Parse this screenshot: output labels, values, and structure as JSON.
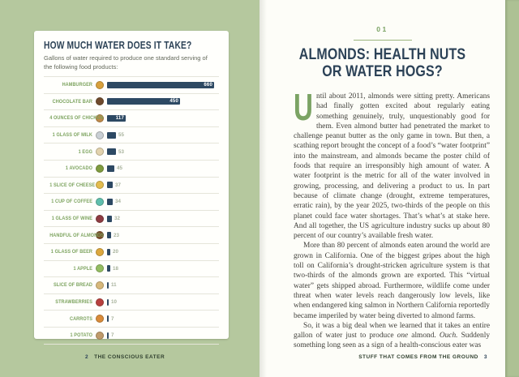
{
  "colors": {
    "background_green": "#b5c89e",
    "navy": "#2c4257",
    "accent_green": "#7ba364",
    "bar_navy": "#2d4963",
    "label_green": "#7ca35e"
  },
  "chart_data": {
    "type": "bar",
    "orientation": "horizontal",
    "title": "HOW MUCH WATER DOES IT TAKE?",
    "subtitle": "Gallons of water required to produce one standard serving of the following food products:",
    "xlabel": "",
    "ylabel": "",
    "xlim": [
      0,
      660
    ],
    "grid": false,
    "legend": false,
    "bar_color": "#2d4963",
    "categories": [
      "HAMBURGER",
      "CHOCOLATE BAR",
      "4 OUNCES OF CHICKEN",
      "1 GLASS OF MILK",
      "1 EGG",
      "1 AVOCADO",
      "1 SLICE OF CHEESE",
      "1 CUP OF COFFEE",
      "1 GLASS OF WINE",
      "HANDFUL OF ALMONDS",
      "1 GLASS OF BEER",
      "1 APPLE",
      "SLICE OF BREAD",
      "STRAWBERRIES",
      "CARROTS",
      "1 POTATO"
    ],
    "values": [
      660,
      450,
      117,
      55,
      53,
      45,
      37,
      34,
      32,
      23,
      20,
      18,
      11,
      10,
      7,
      7
    ],
    "value_label_inside_threshold": 100,
    "icons": [
      {
        "name": "hamburger-icon",
        "color": "#d8a03c"
      },
      {
        "name": "chocolate-bar-icon",
        "color": "#6f4a2d"
      },
      {
        "name": "chicken-icon",
        "color": "#c08a4a"
      },
      {
        "name": "milk-glass-icon",
        "color": "#c9cfd4"
      },
      {
        "name": "egg-icon",
        "color": "#e3d3ae"
      },
      {
        "name": "avocado-icon",
        "color": "#7f9c3f"
      },
      {
        "name": "cheese-icon",
        "color": "#e3bc4e"
      },
      {
        "name": "coffee-cup-icon",
        "color": "#5fbfae"
      },
      {
        "name": "wine-glass-icon",
        "color": "#8e3b42"
      },
      {
        "name": "almonds-icon",
        "color": "#7c4f2c"
      },
      {
        "name": "beer-glass-icon",
        "color": "#dda83e"
      },
      {
        "name": "apple-icon",
        "color": "#93bd62"
      },
      {
        "name": "bread-icon",
        "color": "#d7b87b"
      },
      {
        "name": "strawberries-icon",
        "color": "#b8403f"
      },
      {
        "name": "carrots-icon",
        "color": "#d98b3a"
      },
      {
        "name": "potato-icon",
        "color": "#bf9a6b"
      }
    ]
  },
  "left_page": {
    "footer": {
      "page_number": "2",
      "book_title": "THE CONSCIOUS EATER"
    }
  },
  "right_page": {
    "chapter_number": "01",
    "title_line1": "ALMONDS: HEALTH NUTS",
    "title_line2": "OR WATER HOGS?",
    "drop_cap": "U",
    "paragraphs": [
      [
        {
          "t": "ntil about 2011, almonds were sitting pretty. Americans had finally gotten excited about regularly eating something genuinely, truly, unquestionably good for them. Even almond butter had penetrated the market to challenge peanut butter as the only game in town. But then, a scathing report brought the concept of a food’s “water footprint” into the mainstream, and almonds became the poster child of foods that require an irresponsibly high amount of water. A water footprint is the metric for all of the water involved in growing, processing, and delivering a product to us. In part because of climate change (drought, extreme temperatures, erratic rain), by the year 2025, two-thirds of the people on this planet could face water shortages. That’s what’s at stake here. And all together, the US agriculture industry sucks up about 80 percent of our country’s available fresh water."
        }
      ],
      [
        {
          "t": "More than 80 percent of almonds eaten around the world are grown in California. One of the biggest gripes about the high toll on California’s drought-stricken agriculture system is that two-thirds of the almonds grown are exported. This “virtual water” gets shipped abroad. Furthermore, wildlife come under threat when water levels reach dangerously low levels, like when endangered king salmon in Northern California reportedly became imperiled by water being diverted to almond farms."
        }
      ],
      [
        {
          "t": "So, it was a big deal when we learned that it takes an entire gallon of water just to produce "
        },
        {
          "t": "one",
          "i": true
        },
        {
          "t": " almond. "
        },
        {
          "t": "Ouch.",
          "i": true
        },
        {
          "t": " Suddenly something long seen as a sign of a health-conscious eater was"
        }
      ]
    ],
    "footer": {
      "section_title": "STUFF THAT COMES FROM THE GROUND",
      "page_number": "3"
    }
  }
}
